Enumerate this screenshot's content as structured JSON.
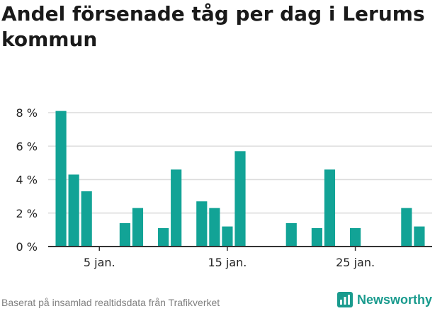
{
  "header": {
    "title": "Andel försenade tåg per dag i Lerums kommun"
  },
  "footer": {
    "source": "Baserat på insamlad realtidsdata från Trafikverket",
    "brand": "Newsworthy"
  },
  "colors": {
    "bar": "#12a396",
    "grid": "#dcdcdc",
    "axis": "#333333",
    "brand": "#1a9b8e"
  },
  "chart_data": {
    "type": "bar",
    "title": "Andel försenade tåg per dag i Lerums kommun",
    "xlabel": "",
    "ylabel": "",
    "days": [
      2,
      3,
      4,
      5,
      6,
      7,
      8,
      9,
      10,
      11,
      12,
      13,
      14,
      15,
      16,
      17,
      18,
      19,
      20,
      21,
      22,
      23,
      24,
      25,
      26,
      27,
      28,
      29,
      30
    ],
    "values": [
      8.1,
      4.3,
      3.3,
      0,
      0,
      1.4,
      2.3,
      0,
      1.1,
      4.6,
      0,
      2.7,
      2.3,
      1.2,
      5.7,
      0,
      0,
      0,
      1.4,
      0,
      1.1,
      4.6,
      0,
      1.1,
      0,
      0,
      0,
      2.3,
      1.2
    ],
    "xlim": [
      1,
      31
    ],
    "ylim": [
      0,
      8
    ],
    "yticks": [
      0,
      2,
      4,
      6,
      8
    ],
    "ytick_labels": [
      "0 %",
      "2 %",
      "4 %",
      "6 %",
      "8 %"
    ],
    "xticks": [
      5,
      15,
      25
    ],
    "xtick_labels": [
      "5 jan.",
      "15 jan.",
      "25 jan."
    ]
  }
}
